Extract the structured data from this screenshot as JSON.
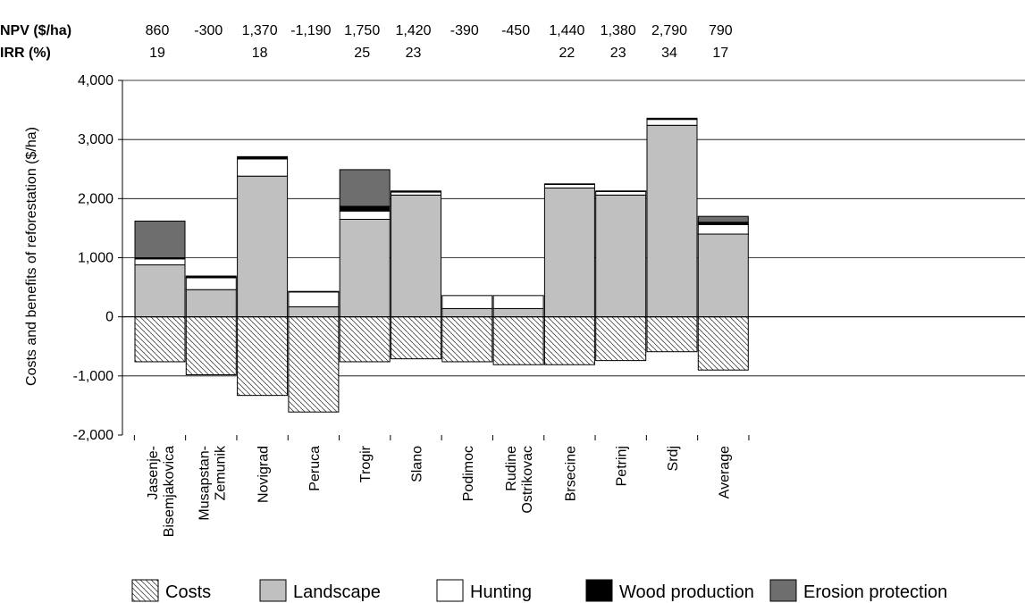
{
  "chart_data": {
    "type": "bar",
    "stacked": true,
    "ylabel": "Costs and benefits of reforestation ($/ha)",
    "ylim": [
      -2000,
      4000
    ],
    "yticks": [
      -2000,
      -1000,
      0,
      1000,
      2000,
      3000,
      4000
    ],
    "ytick_labels": [
      "-2,000",
      "-1,000",
      "0",
      "1,000",
      "2,000",
      "3,000",
      "4,000"
    ],
    "grid": true,
    "legend_position": "bottom",
    "categories": [
      [
        "Jasenje-",
        "Bisemjakovica"
      ],
      [
        "Musapstan-",
        "Zemunik"
      ],
      [
        "Novigrad"
      ],
      [
        "Peruca"
      ],
      [
        "Trogir"
      ],
      [
        "Slano"
      ],
      [
        "Podimoc"
      ],
      [
        "Rudine",
        "Ostrikovac"
      ],
      [
        "Brsecine"
      ],
      [
        "Petrinj"
      ],
      [
        "Srdj"
      ],
      [
        "Average"
      ]
    ],
    "series": [
      {
        "name": "Costs",
        "key": "costs",
        "values": [
          -760,
          -980,
          -1330,
          -1610,
          -760,
          -710,
          -760,
          -810,
          -810,
          -740,
          -590,
          -900
        ]
      },
      {
        "name": "Landscape",
        "key": "landscape",
        "values": [
          880,
          460,
          2380,
          170,
          1650,
          2060,
          140,
          140,
          2180,
          2060,
          3240,
          1400
        ]
      },
      {
        "name": "Hunting",
        "key": "hunting",
        "values": [
          100,
          200,
          290,
          250,
          140,
          50,
          220,
          220,
          60,
          60,
          100,
          160
        ]
      },
      {
        "name": "Wood production",
        "key": "wood",
        "values": [
          20,
          30,
          40,
          10,
          80,
          20,
          0,
          0,
          10,
          10,
          20,
          40
        ]
      },
      {
        "name": "Erosion protection",
        "key": "erosion",
        "values": [
          620,
          0,
          0,
          0,
          620,
          0,
          0,
          0,
          0,
          0,
          0,
          100
        ]
      }
    ],
    "colors": {
      "costs_hatch": "#444444",
      "landscape": "#c0c0c0",
      "hunting": "#ffffff",
      "wood": "#000000",
      "erosion": "#6e6e6e"
    },
    "top_rows": [
      {
        "label": "NPV ($/ha)",
        "values": [
          "860",
          "-300",
          "1,370",
          "-1,190",
          "1,750",
          "1,420",
          "-390",
          "-450",
          "1,440",
          "1,380",
          "2,790",
          "790"
        ]
      },
      {
        "label": "IRR (%)",
        "values": [
          "19",
          "",
          "18",
          "",
          "25",
          "23",
          "",
          "",
          "22",
          "23",
          "34",
          "17"
        ]
      }
    ]
  }
}
